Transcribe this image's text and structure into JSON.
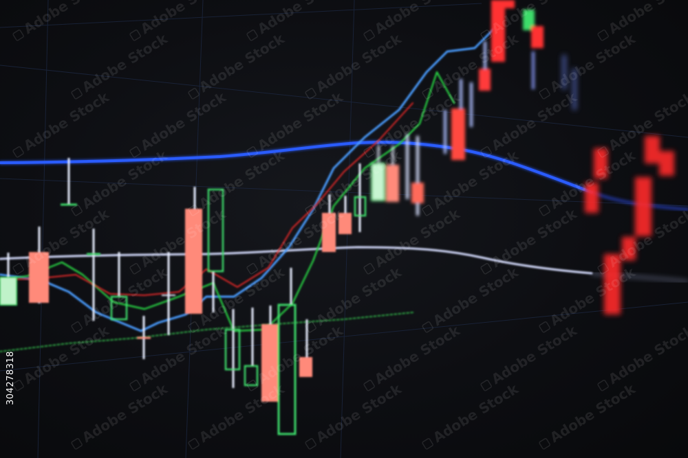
{
  "image": {
    "description_id": "candlestick-chart-photo",
    "colors": {
      "background": "#0b0c0f",
      "bull_candle": "#3ddc6a",
      "bear_candle": "#ff8a7a",
      "bear_candle_far": "#ff2a2a",
      "ma_blue_bright": "#2a5bff",
      "ma_blue_light": "#4aa3ff",
      "ma_white": "#cfd8ff",
      "ma_green": "#28c840",
      "ma_red": "#e02525",
      "ma_green_dotted": "#2fa845",
      "grid": "#1e2a44",
      "wick": "#e8eeff"
    }
  },
  "stock_id": "304278318",
  "watermark": {
    "text": "Adobe Stock",
    "icon": "adobe-stock-logo-icon"
  }
}
